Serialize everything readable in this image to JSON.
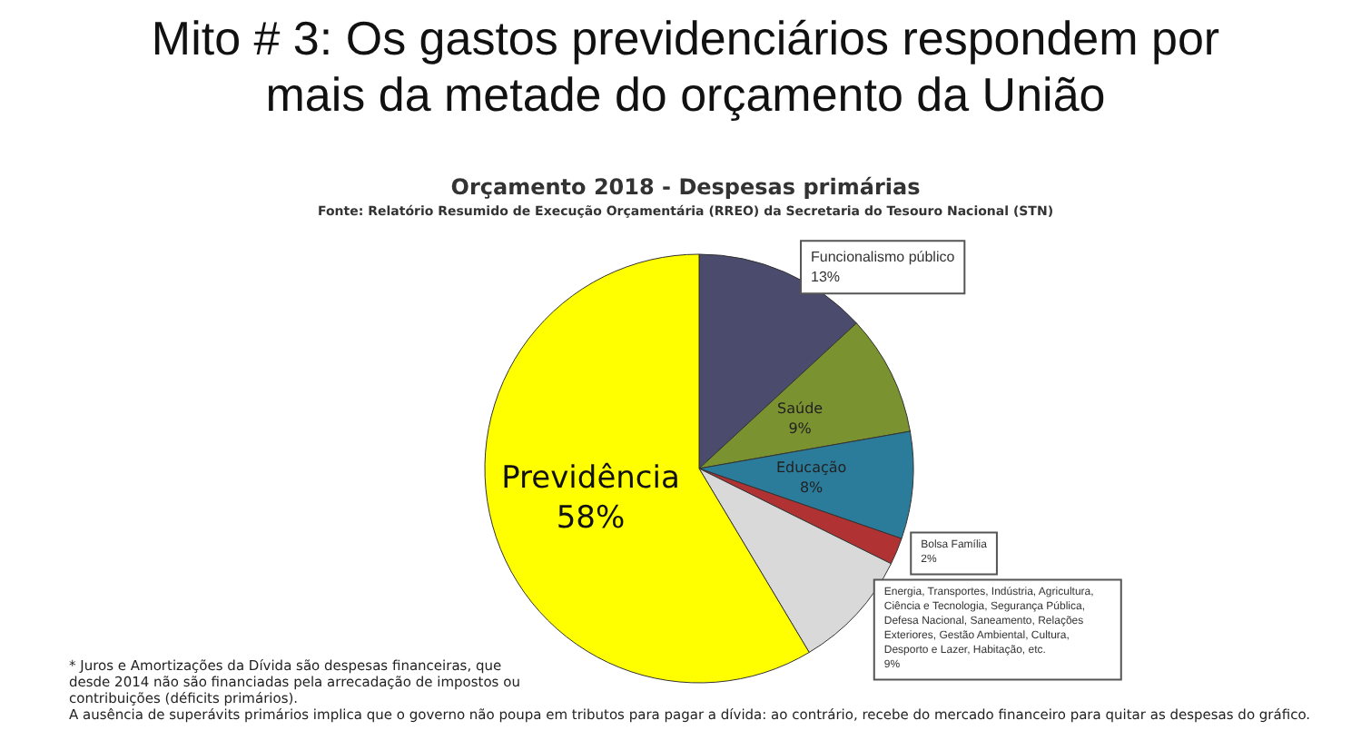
{
  "chart_data": {
    "type": "pie",
    "title": "Mito # 3: Os gastos previdenciários respondem por mais da metade do orçamento da União",
    "subtitle": "Orçamento 2018 - Despesas primárias",
    "annotations": [
      "Fonte: Relatório Resumido de Execução Orçamentária (RREO) da Secretaria do Tesouro Nacional (STN)",
      "* Juros e Amortizações da Dívida são despesas financeiras, que desde 2014 não são financiadas pela arrecadação de impostos ou contribuições (déficits primários).",
      "A ausência de superávits primários implica que o governo não poupa em tributos para pagar a dívida: ao contrário, recebe do mercado financeiro para quitar as despesas do gráfico."
    ],
    "categories": [
      "Funcionalismo público",
      "Saúde",
      "Educação",
      "Bolsa Família",
      "Energia, Transportes, Indústria, Agricultura, Ciência e Tecnologia, Segurança Pública, Defesa Nacional, Saneamento, Relações Exteriores, Gestão Ambiental, Cultura, Desporto e Lazer, Habitação, etc.",
      "Previdência"
    ],
    "values": [
      13,
      9,
      8,
      2,
      9,
      58
    ],
    "value_labels": [
      "13%",
      "9%",
      "8%",
      "2%",
      "9%",
      "58%"
    ],
    "colors": [
      "#4b4b6e",
      "#7b9230",
      "#2b7b9b",
      "#b03232",
      "#d9d9d9",
      "#ffff00"
    ]
  }
}
